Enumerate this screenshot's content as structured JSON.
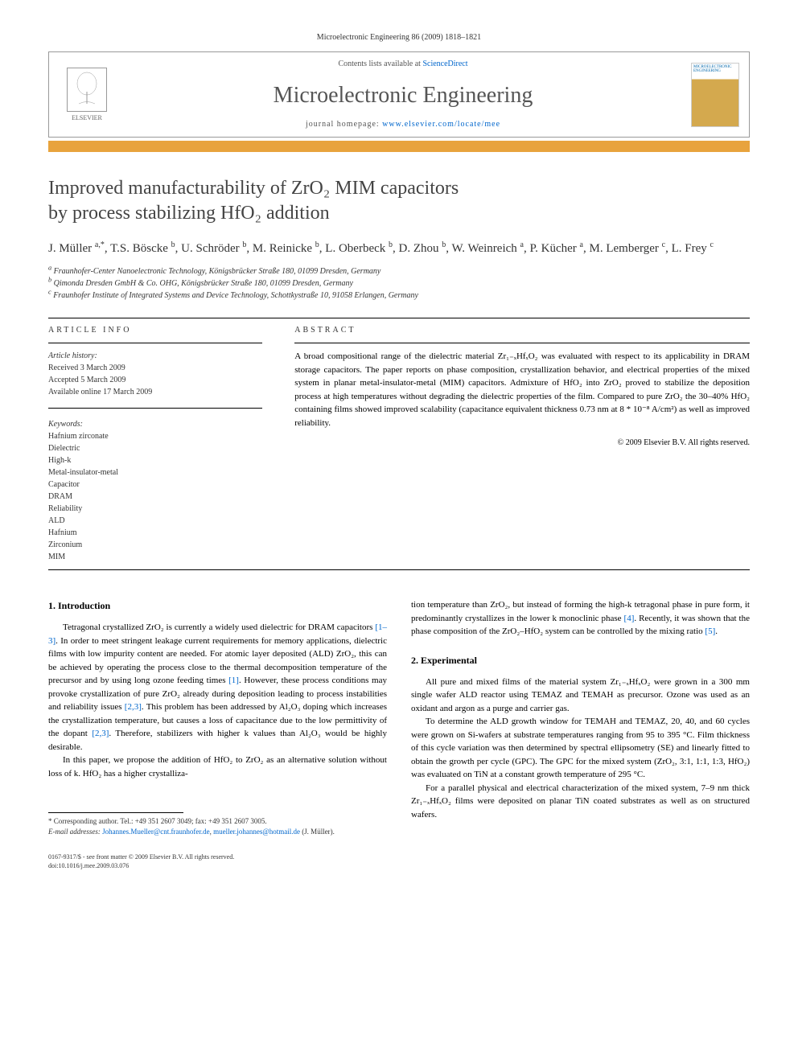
{
  "journal_ref": "Microelectronic Engineering 86 (2009) 1818–1821",
  "header": {
    "contents_prefix": "Contents lists available at ",
    "contents_link": "ScienceDirect",
    "journal_name": "Microelectronic Engineering",
    "homepage_prefix": "journal homepage: ",
    "homepage_url": "www.elsevier.com/locate/mee",
    "elsevier_label": "ELSEVIER",
    "cover_title": "MICROELECTRONIC ENGINEERING"
  },
  "title_line1": "Improved manufacturability of ZrO₂ MIM capacitors",
  "title_line2": "by process stabilizing HfO₂ addition",
  "authors_html": "J. Müller <sup>a,*</sup>, T.S. Böscke <sup>b</sup>, U. Schröder <sup>b</sup>, M. Reinicke <sup>b</sup>, L. Oberbeck <sup>b</sup>, D. Zhou <sup>b</sup>, W. Weinreich <sup>a</sup>, P. Kücher <sup>a</sup>, M. Lemberger <sup>c</sup>, L. Frey <sup>c</sup>",
  "affiliations": {
    "a": "Fraunhofer-Center Nanoelectronic Technology, Königsbrücker Straße 180, 01099 Dresden, Germany",
    "b": "Qimonda Dresden GmbH & Co. OHG, Königsbrücker Straße 180, 01099 Dresden, Germany",
    "c": "Fraunhofer Institute of Integrated Systems and Device Technology, Schottkystraße 10, 91058 Erlangen, Germany"
  },
  "article_info_label": "ARTICLE INFO",
  "abstract_label": "ABSTRACT",
  "history": {
    "label": "Article history:",
    "received": "Received 3 March 2009",
    "accepted": "Accepted 5 March 2009",
    "online": "Available online 17 March 2009"
  },
  "keywords_label": "Keywords:",
  "keywords": [
    "Hafnium zirconate",
    "Dielectric",
    "High-k",
    "Metal-insulator-metal",
    "Capacitor",
    "DRAM",
    "Reliability",
    "ALD",
    "Hafnium",
    "Zirconium",
    "MIM"
  ],
  "abstract": "A broad compositional range of the dielectric material Zr₁₋ₓHfₓO₂ was evaluated with respect to its applicability in DRAM storage capacitors. The paper reports on phase composition, crystallization behavior, and electrical properties of the mixed system in planar metal-insulator-metal (MIM) capacitors. Admixture of HfO₂ into ZrO₂ proved to stabilize the deposition process at high temperatures without degrading the dielectric properties of the film. Compared to pure ZrO₂ the 30–40% HfO₂ containing films showed improved scalability (capacitance equivalent thickness 0.73 nm at 8 * 10⁻⁸ A/cm²) as well as improved reliability.",
  "copyright": "© 2009 Elsevier B.V. All rights reserved.",
  "sections": {
    "intro_heading": "1. Introduction",
    "intro_p1": "Tetragonal crystallized ZrO₂ is currently a widely used dielectric for DRAM capacitors [1–3]. In order to meet stringent leakage current requirements for memory applications, dielectric films with low impurity content are needed. For atomic layer deposited (ALD) ZrO₂, this can be achieved by operating the process close to the thermal decomposition temperature of the precursor and by using long ozone feeding times [1]. However, these process conditions may provoke crystallization of pure ZrO₂ already during deposition leading to process instabilities and reliability issues [2,3]. This problem has been addressed by Al₂O₃ doping which increases the crystallization temperature, but causes a loss of capacitance due to the low permittivity of the dopant [2,3]. Therefore, stabilizers with higher k values than Al₂O₃ would be highly desirable.",
    "intro_p2": "In this paper, we propose the addition of HfO₂ to ZrO₂ as an alternative solution without loss of k. HfO₂ has a higher crystalliza-",
    "intro_p2_cont": "tion temperature than ZrO₂, but instead of forming the high-k tetragonal phase in pure form, it predominantly crystallizes in the lower k monoclinic phase [4]. Recently, it was shown that the phase composition of the ZrO₂–HfO₂ system can be controlled by the mixing ratio [5].",
    "exp_heading": "2. Experimental",
    "exp_p1": "All pure and mixed films of the material system Zr₁₋ₓHfₓO₂ were grown in a 300 mm single wafer ALD reactor using TEMAZ and TEMAH as precursor. Ozone was used as an oxidant and argon as a purge and carrier gas.",
    "exp_p2": "To determine the ALD growth window for TEMAH and TEMAZ, 20, 40, and 60 cycles were grown on Si-wafers at substrate temperatures ranging from 95 to 395 °C. Film thickness of this cycle variation was then determined by spectral ellipsometry (SE) and linearly fitted to obtain the growth per cycle (GPC). The GPC for the mixed system (ZrO₂, 3:1, 1:1, 1:3, HfO₂) was evaluated on TiN at a constant growth temperature of 295 °C.",
    "exp_p3": "For a parallel physical and electrical characterization of the mixed system, 7–9 nm thick Zr₁₋ₓHfₓO₂ films were deposited on planar TiN coated substrates as well as on structured wafers."
  },
  "footnote": {
    "corr": "* Corresponding author. Tel.: +49 351 2607 3049; fax: +49 351 2607 3005.",
    "email_label": "E-mail addresses:",
    "email1": "Johannes.Mueller@cnt.fraunhofer.de",
    "email2": "mueller.johannes@hotmail.de",
    "email_name": "(J. Müller)."
  },
  "footer": {
    "line1": "0167-9317/$ - see front matter © 2009 Elsevier B.V. All rights reserved.",
    "line2": "doi:10.1016/j.mee.2009.03.076"
  },
  "colors": {
    "orange_bar": "#e8a33d",
    "link": "#0066cc",
    "text": "#000000",
    "gray_text": "#555555"
  }
}
